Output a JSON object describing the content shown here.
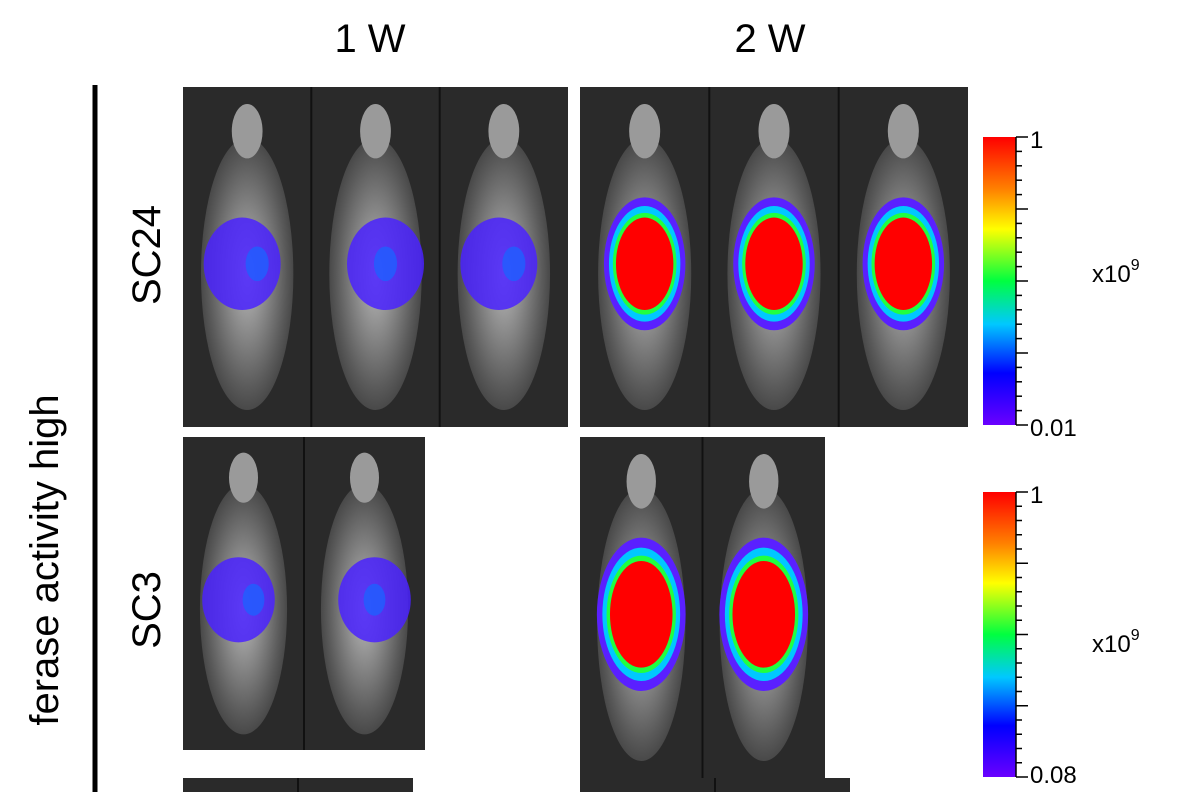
{
  "figure": {
    "columns": [
      "1 W",
      "2 W"
    ],
    "side_label": "ferase activity high",
    "rows": [
      {
        "label": "SC24",
        "scale": {
          "max": "1",
          "min": "0.01",
          "unit": {
            "base": "x10",
            "exponent": "9"
          }
        }
      },
      {
        "label": "SC3",
        "scale": {
          "max": "1",
          "min": "0.08",
          "unit": {
            "base": "x10",
            "exponent": "9"
          }
        }
      }
    ]
  }
}
